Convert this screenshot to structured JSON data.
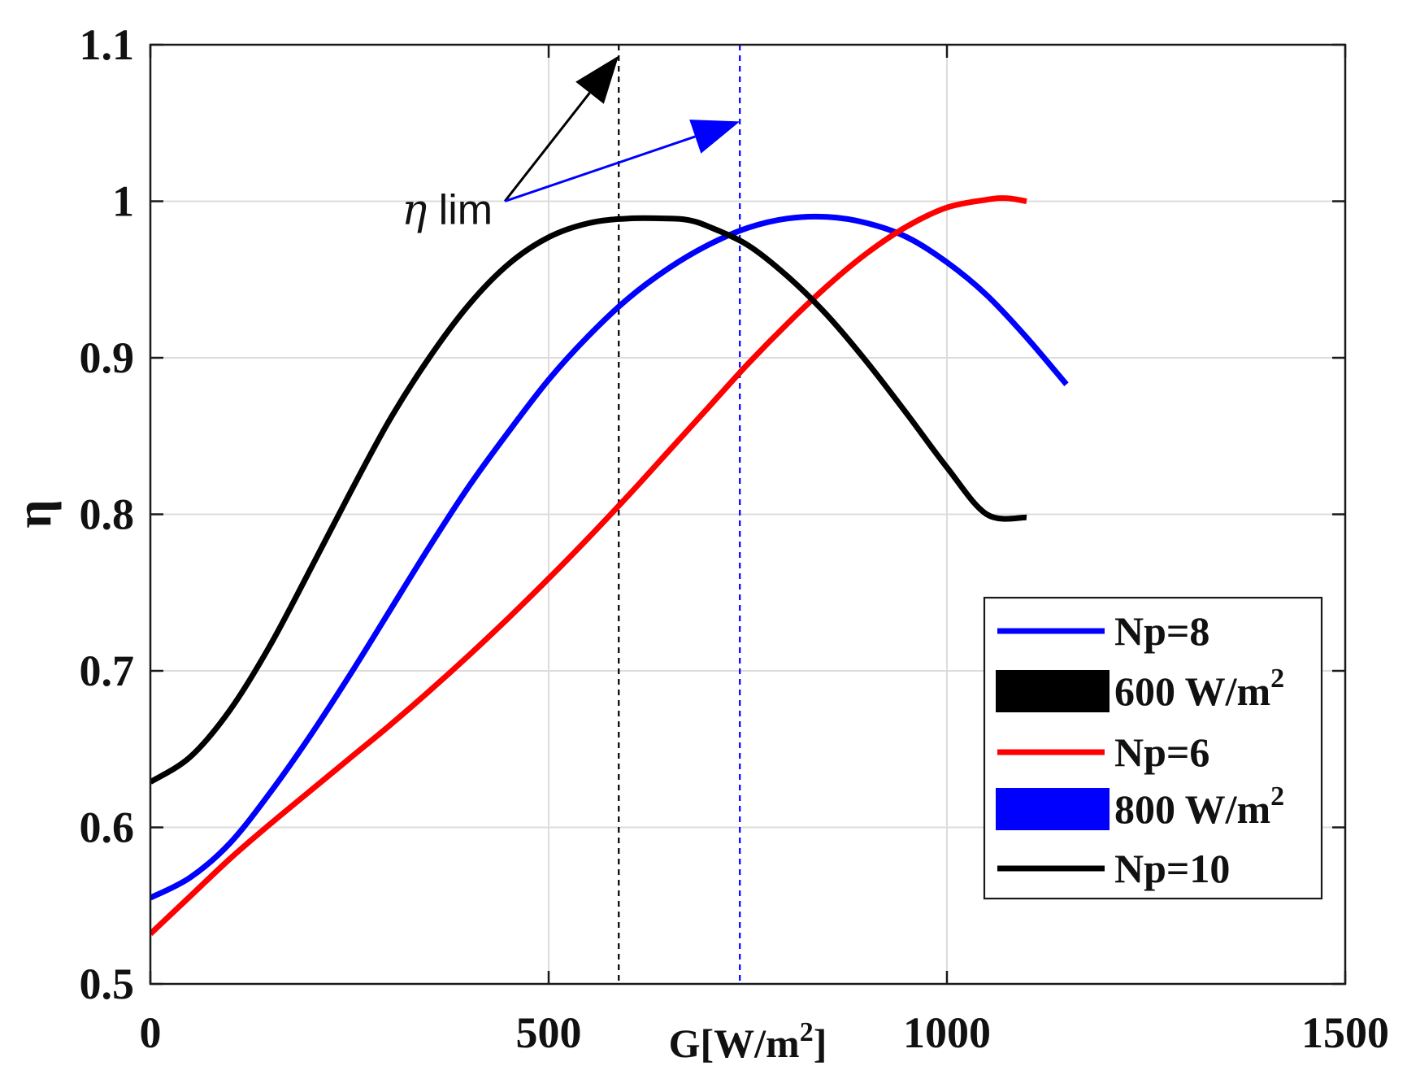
{
  "chart_data": {
    "type": "line",
    "title": "",
    "xlabel": "G[W/m",
    "xlabel_sup": "2",
    "xlabel_close": "]",
    "ylabel": "η",
    "xlim": [
      0,
      1500
    ],
    "ylim": [
      0.5,
      1.1
    ],
    "xticks": [
      0,
      500,
      1000,
      1500
    ],
    "xtick_labels": [
      "0",
      "500",
      "1000",
      "1500"
    ],
    "yticks": [
      0.5,
      0.6,
      0.7,
      0.8,
      0.9,
      1.0,
      1.1
    ],
    "ytick_labels": [
      "0.5",
      "0.6",
      "0.7",
      "0.8",
      "0.9",
      "1",
      "1.1"
    ],
    "grid": true,
    "series": [
      {
        "name": "Np=8",
        "color": "#0000ff",
        "x": [
          0,
          50,
          100,
          150,
          200,
          250,
          300,
          350,
          400,
          450,
          500,
          550,
          600,
          650,
          700,
          750,
          800,
          850,
          900,
          950,
          1000,
          1050,
          1100,
          1150
        ],
        "y": [
          0.555,
          0.568,
          0.59,
          0.622,
          0.658,
          0.697,
          0.738,
          0.779,
          0.818,
          0.853,
          0.886,
          0.914,
          0.938,
          0.957,
          0.972,
          0.983,
          0.989,
          0.99,
          0.986,
          0.977,
          0.961,
          0.94,
          0.913,
          0.883
        ]
      },
      {
        "name": "Np=6",
        "color": "#ff0000",
        "x": [
          0,
          50,
          100,
          150,
          200,
          250,
          300,
          350,
          400,
          450,
          500,
          550,
          600,
          650,
          700,
          750,
          800,
          850,
          900,
          950,
          1000,
          1050,
          1075,
          1100
        ],
        "y": [
          0.532,
          0.556,
          0.58,
          0.602,
          0.623,
          0.644,
          0.665,
          0.687,
          0.71,
          0.734,
          0.759,
          0.785,
          0.812,
          0.84,
          0.868,
          0.896,
          0.922,
          0.946,
          0.967,
          0.984,
          0.996,
          1.001,
          1.002,
          1.0
        ]
      },
      {
        "name": "Np=10",
        "color": "#000000",
        "x": [
          0,
          50,
          100,
          150,
          200,
          250,
          300,
          350,
          400,
          450,
          500,
          550,
          600,
          650,
          675,
          700,
          750,
          800,
          850,
          900,
          950,
          1000,
          1050,
          1100
        ],
        "y": [
          0.629,
          0.645,
          0.675,
          0.716,
          0.764,
          0.813,
          0.86,
          0.9,
          0.934,
          0.96,
          0.977,
          0.986,
          0.989,
          0.989,
          0.988,
          0.984,
          0.972,
          0.952,
          0.927,
          0.897,
          0.864,
          0.83,
          0.8,
          0.798
        ]
      }
    ],
    "legend": {
      "placement": "bottom-right",
      "entries": [
        {
          "label": "Np=8",
          "color": "#0000ff",
          "style": "line"
        },
        {
          "label": "600 W/m",
          "sup": "2",
          "color": "#000000",
          "style": "patch"
        },
        {
          "label": "Np=6",
          "color": "#ff0000",
          "style": "line"
        },
        {
          "label": "800 W/m",
          "sup": "2",
          "color": "#0000ff",
          "style": "patch"
        },
        {
          "label": "Np=10",
          "color": "#000000",
          "style": "line"
        }
      ]
    },
    "reference_lines": [
      {
        "x": 588,
        "color": "#000000",
        "style": "dashed"
      },
      {
        "x": 740,
        "color": "#0000ff",
        "style": "dashed"
      }
    ],
    "annotation": {
      "label_greek": "η",
      "label_rest": " lim",
      "anchor": {
        "x": 445,
        "y": 1.0
      },
      "arrows": [
        {
          "to": {
            "x": 588,
            "y": 1.093
          },
          "color": "#000000"
        },
        {
          "to": {
            "x": 740,
            "y": 1.051
          },
          "color": "#0000ff"
        }
      ]
    }
  }
}
